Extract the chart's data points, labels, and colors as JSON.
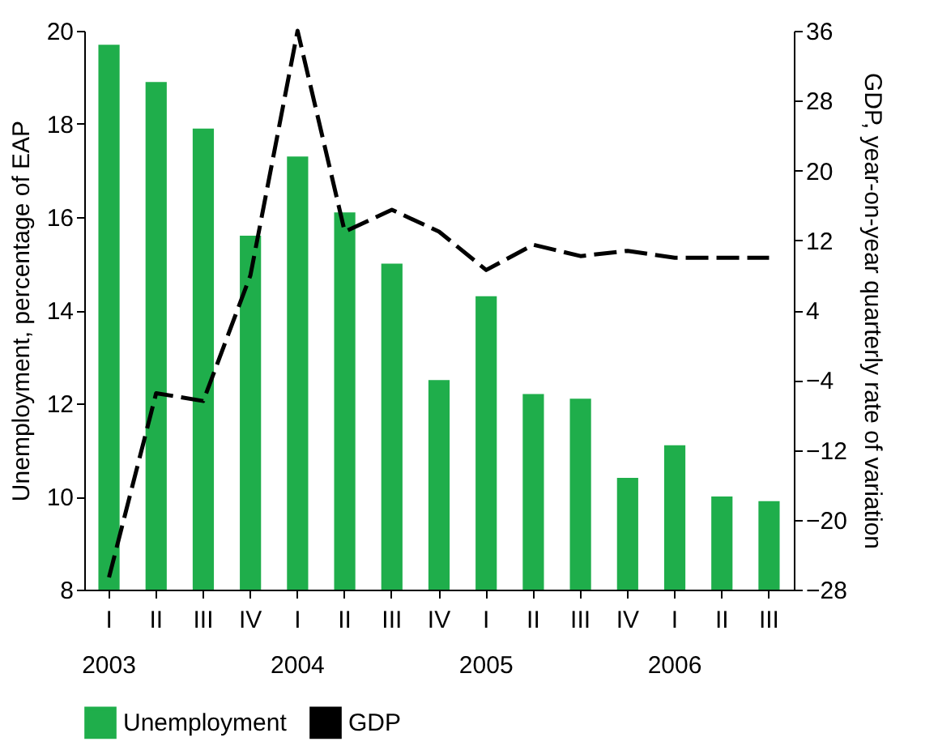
{
  "chart_data": {
    "type": "bar",
    "categories": [
      "I\n2003",
      "II",
      "III",
      "IV",
      "I\n2004",
      "II",
      "III",
      "IV",
      "I\n2005",
      "II",
      "III",
      "IV",
      "I\n2006",
      "II",
      "III"
    ],
    "ylabel": "Unemployment, percentage of EAP",
    "y2label": "GDP, year-on-year quarterly rate of variation",
    "ylim": [
      8,
      20
    ],
    "yticks": [
      8,
      10,
      12,
      14,
      16,
      18,
      20
    ],
    "y2lim": [
      -28,
      36
    ],
    "y2ticks": [
      -28,
      -20,
      -12,
      -4,
      4,
      12,
      20,
      28,
      36
    ],
    "series": [
      {
        "name": "Unemployment",
        "color": "#1fae4b",
        "values": [
          19.7,
          18.9,
          17.9,
          15.6,
          17.3,
          16.1,
          15.0,
          12.5,
          14.3,
          12.2,
          12.1,
          10.4,
          11.1,
          10.0,
          9.9
        ]
      },
      {
        "name": "GDP",
        "type": "line",
        "axis": "y2",
        "color": "#000000",
        "line_style": "dashed",
        "values": [
          -26.6,
          -5.5,
          -6.4,
          8,
          36,
          13,
          15.5,
          13,
          8.6,
          11.5,
          10.2,
          10.8,
          10,
          10,
          10
        ]
      }
    ],
    "grid": false,
    "legend": "bottom"
  }
}
